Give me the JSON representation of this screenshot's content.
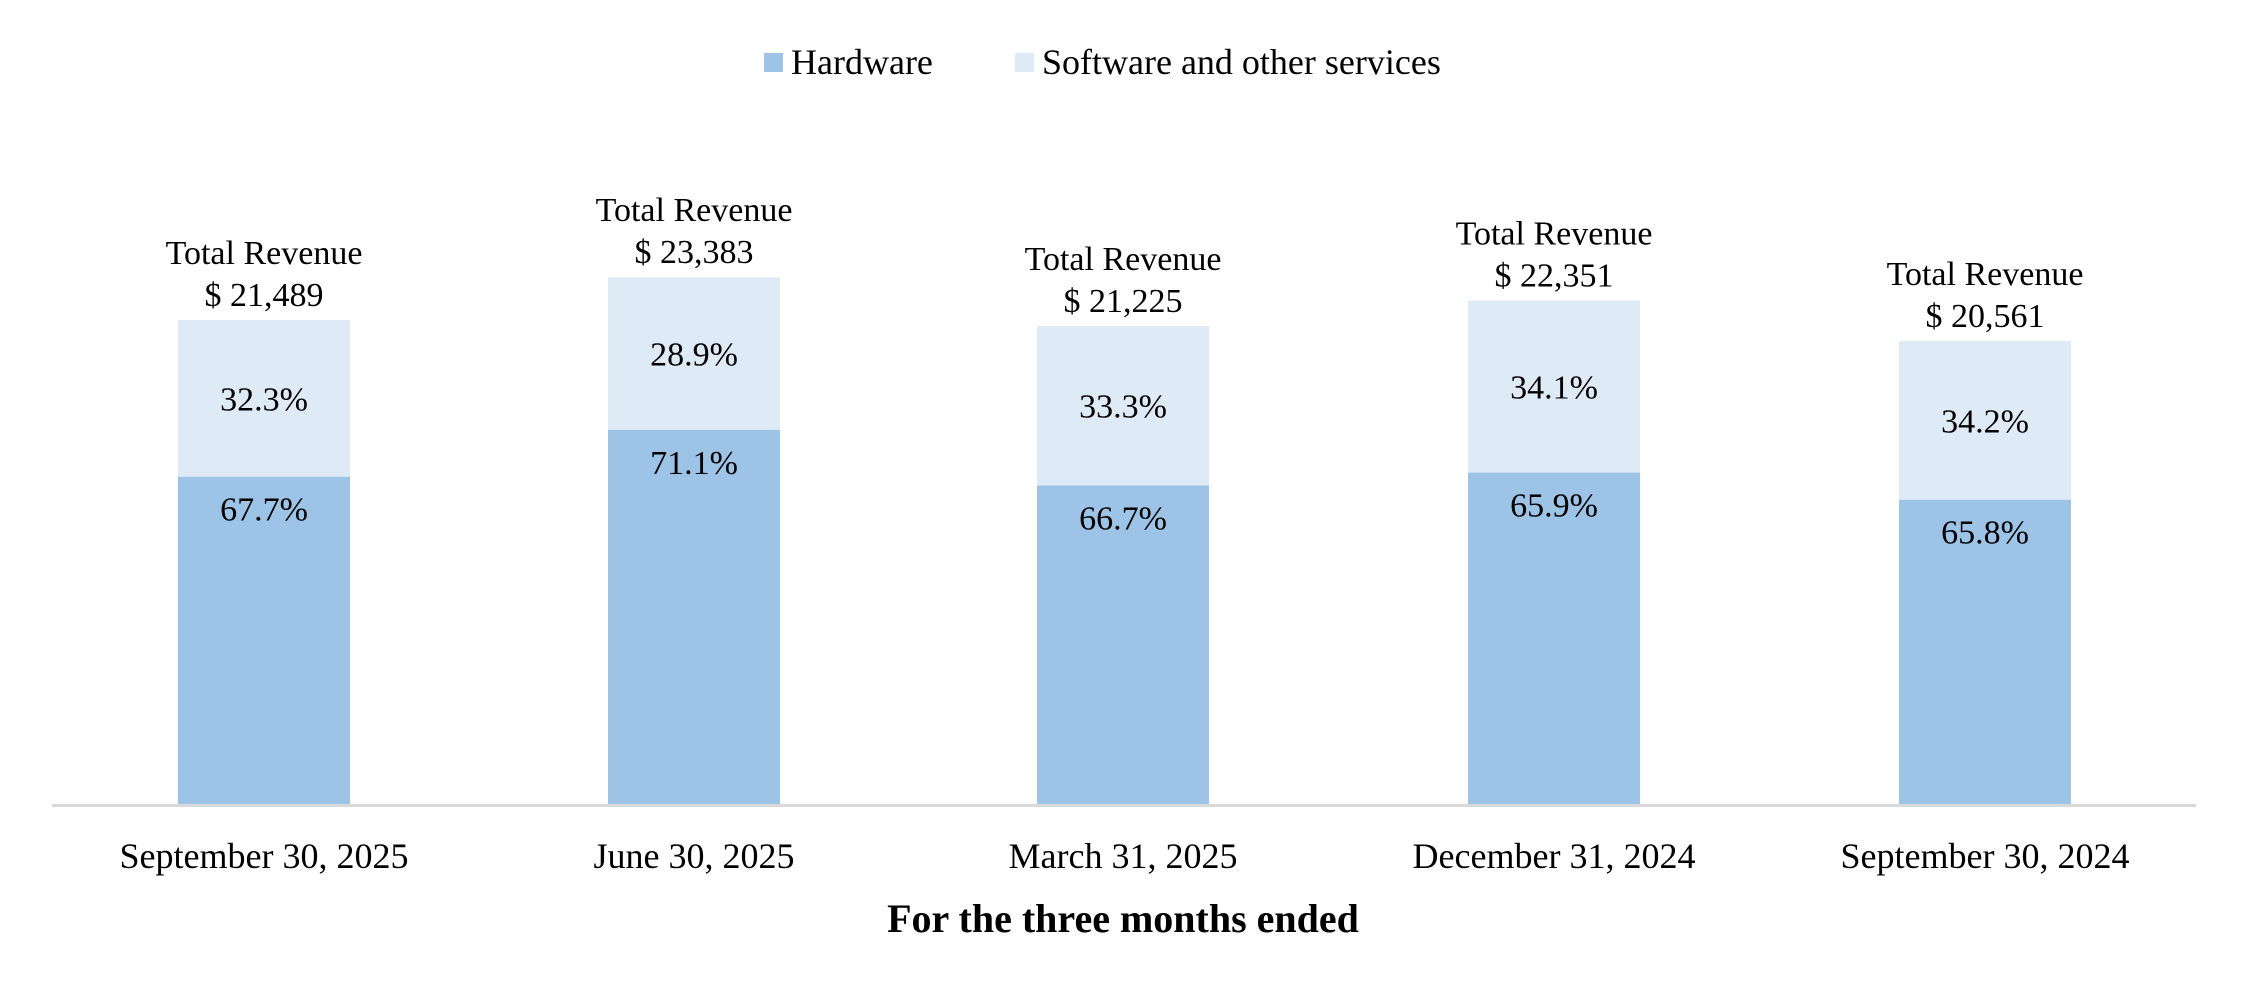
{
  "chart_data": {
    "type": "bar",
    "stacked": true,
    "value_unit": "percent",
    "categories": [
      "September 30, 2025",
      "June 30, 2025",
      "March 31, 2025",
      "December 31, 2024",
      "September 30, 2024"
    ],
    "series": [
      {
        "name": "Hardware",
        "color": "#9DC3E6",
        "values": [
          67.7,
          71.1,
          66.7,
          65.9,
          65.8
        ],
        "labels": [
          "67.7%",
          "71.1%",
          "66.7%",
          "65.9%",
          "65.8%"
        ]
      },
      {
        "name": "Software and other services",
        "color": "#DEEBF7",
        "values": [
          32.3,
          28.9,
          33.3,
          34.1,
          34.2
        ],
        "labels": [
          "32.3%",
          "28.9%",
          "33.3%",
          "34.1%",
          "34.2%"
        ]
      }
    ],
    "totals": {
      "heading": "Total Revenue",
      "values": [
        21489,
        23383,
        21225,
        22351,
        20561
      ],
      "labels": [
        "$ 21,489",
        "$ 23,383",
        "$ 21,225",
        "$ 22,351",
        "$ 20,561"
      ]
    },
    "title": "",
    "xlabel": "For the three months ended",
    "ylabel": "",
    "ylim": [
      0,
      25000
    ],
    "grid": false,
    "legend": "top-center",
    "axis_color": "#D9D9D9"
  }
}
